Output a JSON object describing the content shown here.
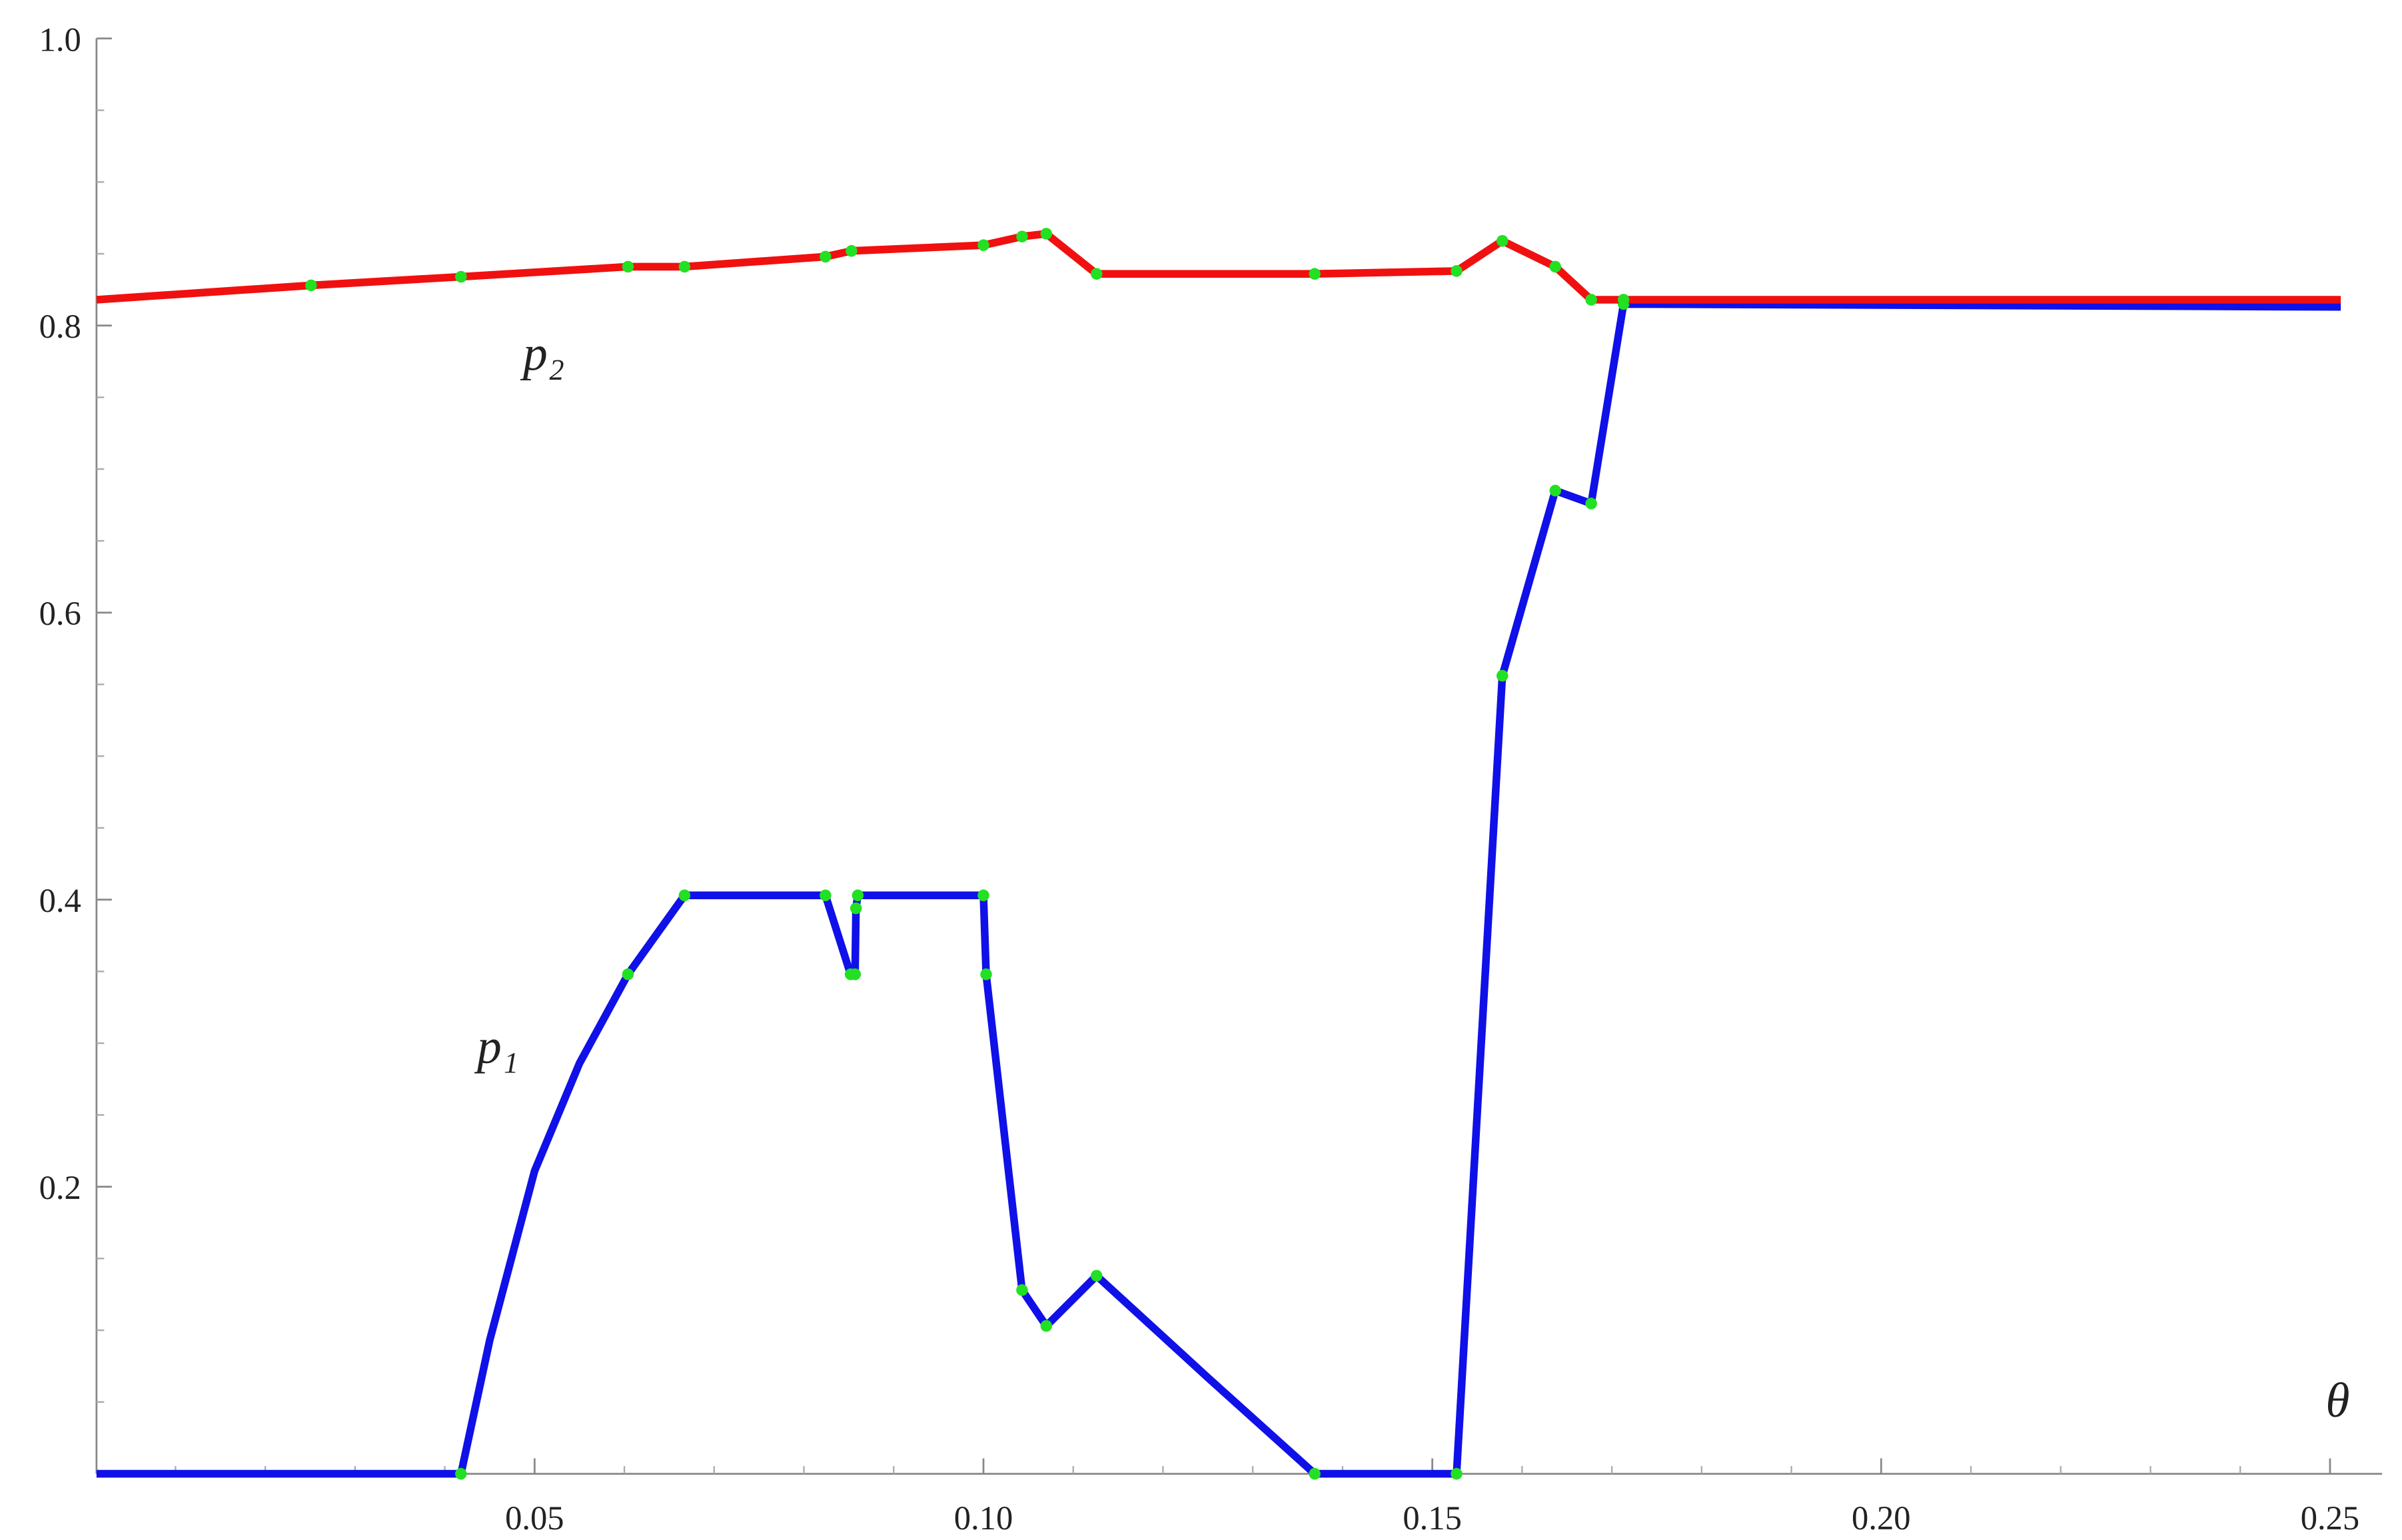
{
  "chart_data": {
    "type": "line",
    "x_label": "θ",
    "xlim": [
      0.0012,
      0.2558
    ],
    "ylim": [
      0,
      1.0
    ],
    "xticks": [
      {
        "value": 0.05,
        "label": "0.05"
      },
      {
        "value": 0.1,
        "label": "0.10"
      },
      {
        "value": 0.15,
        "label": "0.15"
      },
      {
        "value": 0.2,
        "label": "0.20"
      },
      {
        "value": 0.25,
        "label": "0.25"
      }
    ],
    "yticks": [
      {
        "value": 0.2,
        "label": "0.2"
      },
      {
        "value": 0.4,
        "label": "0.4"
      },
      {
        "value": 0.6,
        "label": "0.6"
      },
      {
        "value": 0.8,
        "label": "0.8"
      },
      {
        "value": 1.0,
        "label": "1.0"
      }
    ],
    "xminorticks": [
      0.01,
      0.02,
      0.03,
      0.04,
      0.06,
      0.07,
      0.08,
      0.09,
      0.11,
      0.12,
      0.13,
      0.14,
      0.16,
      0.17,
      0.18,
      0.19,
      0.21,
      0.22,
      0.23,
      0.24
    ],
    "yminorticks": [
      0.05,
      0.1,
      0.15,
      0.25,
      0.3,
      0.35,
      0.45,
      0.5,
      0.55,
      0.65,
      0.7,
      0.75,
      0.85,
      0.9,
      0.95
    ],
    "point_color": "#22e022",
    "series": [
      {
        "name": "p₁",
        "color": "#1010e8",
        "x": [
          0.0012,
          0.0418,
          0.045,
          0.05,
          0.055,
          0.0604,
          0.0667,
          0.0824,
          0.0852,
          0.0857,
          0.0858,
          0.086,
          0.1,
          0.1003,
          0.1043,
          0.107,
          0.1126,
          0.125,
          0.1369,
          0.1527,
          0.1578,
          0.1637,
          0.1677,
          0.1713,
          0.2512
        ],
        "values": [
          0,
          0,
          0.093,
          0.211,
          0.286,
          0.348,
          0.403,
          0.403,
          0.348,
          0.348,
          0.394,
          0.403,
          0.403,
          0.348,
          0.128,
          0.103,
          0.138,
          0.067,
          0,
          0,
          0.556,
          0.685,
          0.676,
          0.815,
          0.813
        ],
        "points_x": [
          0.0418,
          0.0604,
          0.0667,
          0.0824,
          0.0852,
          0.0857,
          0.0858,
          0.086,
          0.1,
          0.1003,
          0.1043,
          0.107,
          0.1126,
          0.1369,
          0.1527,
          0.1578,
          0.1637,
          0.1677,
          0.1713
        ],
        "points_y": [
          0,
          0.348,
          0.403,
          0.403,
          0.348,
          0.348,
          0.394,
          0.403,
          0.403,
          0.348,
          0.128,
          0.103,
          0.138,
          0,
          0,
          0.556,
          0.685,
          0.676,
          0.815
        ]
      },
      {
        "name": "p₂",
        "color": "#f01010",
        "x": [
          0.0012,
          0.0251,
          0.0418,
          0.0604,
          0.0667,
          0.0824,
          0.0853,
          0.1,
          0.1043,
          0.107,
          0.1126,
          0.1369,
          0.1527,
          0.1578,
          0.1637,
          0.1677,
          0.1713,
          0.2512
        ],
        "values": [
          0.818,
          0.828,
          0.834,
          0.841,
          0.841,
          0.848,
          0.852,
          0.856,
          0.862,
          0.864,
          0.836,
          0.836,
          0.838,
          0.859,
          0.841,
          0.818,
          0.818,
          0.818
        ],
        "points_x": [
          0.0251,
          0.0418,
          0.0604,
          0.0667,
          0.0824,
          0.0853,
          0.1,
          0.1043,
          0.107,
          0.1126,
          0.1369,
          0.1527,
          0.1578,
          0.1637,
          0.1677,
          0.1713
        ],
        "points_y": [
          0.828,
          0.834,
          0.841,
          0.841,
          0.848,
          0.852,
          0.856,
          0.862,
          0.864,
          0.836,
          0.836,
          0.838,
          0.859,
          0.841,
          0.818,
          0.818
        ]
      }
    ]
  }
}
